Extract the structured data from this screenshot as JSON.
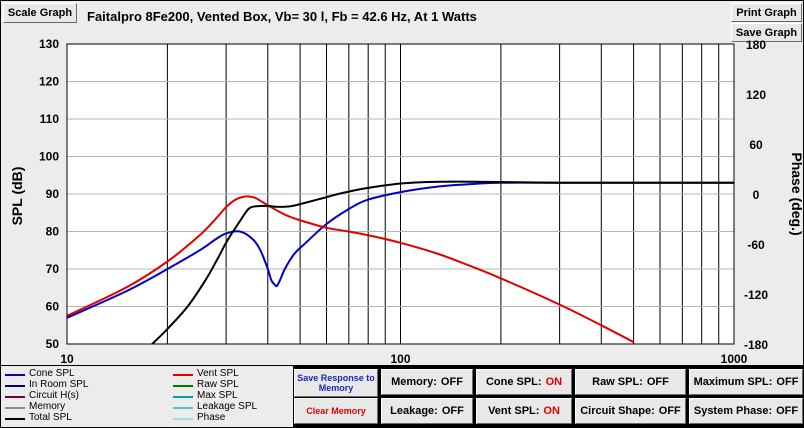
{
  "header": {
    "scale_label": "Scale Graph",
    "title": "Faitalpro 8Fe200,  Vented Box, Vb= 30 l,  Fb = 42.6 Hz,  At 1 Watts",
    "print_label": "Print Graph",
    "save_label": "Save Graph"
  },
  "chart_data": {
    "type": "line",
    "title": "Faitalpro 8Fe200,  Vented Box, Vb= 30 l,  Fb = 42.6 Hz,  At 1 Watts",
    "xlabel": "",
    "ylabel": "SPL (dB)",
    "y2label": "Phase (deg.)",
    "xscale": "log",
    "xlim": [
      10,
      1000
    ],
    "ylim": [
      50,
      130
    ],
    "y2lim": [
      -180,
      180
    ],
    "xticks": [
      10,
      100,
      1000
    ],
    "xtick_labels": [
      "10",
      "100",
      "1000"
    ],
    "yticks": [
      50,
      60,
      70,
      80,
      90,
      100,
      110,
      120,
      130
    ],
    "y2ticks": [
      -180,
      -120,
      -60,
      0,
      60,
      120,
      180
    ],
    "y2tick_labels": [
      "-180",
      "-120",
      "-60",
      "0",
      "60",
      "120",
      "180"
    ],
    "grid": true,
    "series": [
      {
        "name": "Cone SPL",
        "color": "#0000c8",
        "x": [
          10,
          15,
          20,
          25,
          28,
          30,
          33,
          36,
          38,
          40,
          41,
          42,
          42.6,
          43.5,
          45,
          48,
          52,
          60,
          70,
          80,
          100,
          130,
          160,
          200,
          300,
          500,
          1000
        ],
        "y": [
          57,
          64,
          70,
          75,
          78,
          79.5,
          80,
          78,
          75,
          70,
          67,
          65.8,
          65.5,
          67,
          70,
          74,
          77,
          82,
          86,
          88.5,
          90.5,
          92,
          92.6,
          93,
          93,
          93,
          93
        ]
      },
      {
        "name": "Vent SPL",
        "color": "#e00000",
        "x": [
          10,
          15,
          20,
          25,
          28,
          30,
          32,
          34,
          35.5,
          37,
          40,
          45,
          50,
          60,
          70,
          80,
          100,
          130,
          160,
          200,
          300,
          400,
          500
        ],
        "y": [
          57.5,
          65,
          72,
          79,
          83.5,
          86.5,
          88.5,
          89.3,
          89.3,
          88.8,
          87,
          84.5,
          83,
          81,
          80,
          79,
          77,
          74,
          71,
          67.5,
          60.5,
          55,
          50.5
        ]
      },
      {
        "name": "Total SPL",
        "color": "#000000",
        "x": [
          18,
          20,
          23,
          26,
          28,
          30,
          32,
          34,
          35,
          36,
          38,
          40,
          42.6,
          45,
          48,
          52,
          58,
          65,
          75,
          85,
          100,
          120,
          150,
          200,
          300,
          500,
          1000
        ],
        "y": [
          50,
          54,
          60,
          67,
          72,
          77,
          81,
          84.5,
          86,
          86.6,
          86.8,
          86.8,
          86.6,
          86.6,
          86.9,
          87.7,
          88.8,
          90,
          91.2,
          92,
          92.8,
          93.2,
          93.3,
          93.2,
          93,
          93,
          93
        ]
      }
    ]
  },
  "legend": {
    "items": [
      {
        "label": "Cone SPL",
        "color": "#0000c8"
      },
      {
        "label": "In Room SPL",
        "color": "#00006e"
      },
      {
        "label": "Circuit H(s)",
        "color": "#6e0050"
      },
      {
        "label": "Memory",
        "color": "#8c8c8c"
      },
      {
        "label": "Total SPL",
        "color": "#000000"
      },
      {
        "label": "Vent SPL",
        "color": "#e00000"
      },
      {
        "label": "Raw SPL",
        "color": "#007800"
      },
      {
        "label": "Max SPL",
        "color": "#00a0a0"
      },
      {
        "label": "Leakage SPL",
        "color": "#50c8c8"
      },
      {
        "label": "Phase",
        "color": "#a0e0e0"
      }
    ]
  },
  "controls": {
    "save_response": "Save Response to Memory",
    "clear_memory": "Clear Memory",
    "memory": {
      "label": "Memory:",
      "state": "OFF"
    },
    "leakage": {
      "label": "Leakage:",
      "state": "OFF"
    },
    "cone_spl": {
      "label": "Cone SPL:",
      "state": "ON"
    },
    "vent_spl": {
      "label": "Vent SPL:",
      "state": "ON"
    },
    "raw_spl": {
      "label": "Raw SPL:",
      "state": "OFF"
    },
    "circuit_shape": {
      "label": "Circuit Shape:",
      "state": "OFF"
    },
    "max_spl": {
      "label": "Maximum SPL:",
      "state": "OFF"
    },
    "system_phase": {
      "label": "System Phase:",
      "state": "OFF"
    }
  }
}
